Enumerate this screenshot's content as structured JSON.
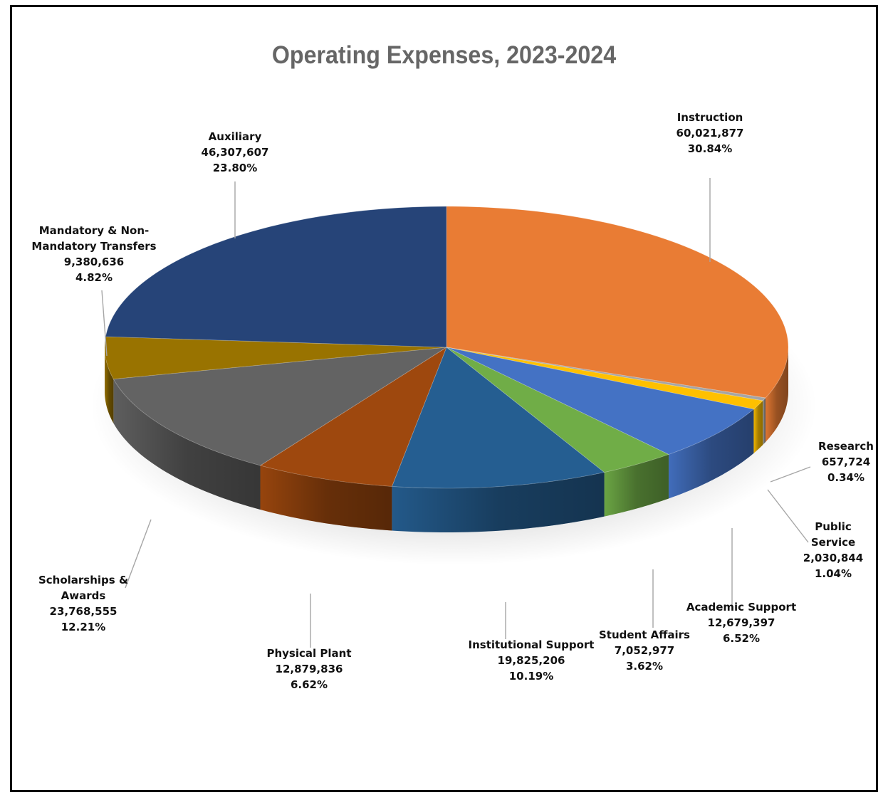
{
  "chart_data": {
    "type": "pie",
    "title": "Operating Expenses, 2023-2024",
    "slices": [
      {
        "name": "Instruction",
        "value": 60021877,
        "value_label": "60,021,877",
        "percent": "30.84%",
        "color": "#e97c34"
      },
      {
        "name": "Research",
        "value": 657724,
        "value_label": "657,724",
        "percent": "0.34%",
        "color": "#a5a5a5"
      },
      {
        "name": "Public Service",
        "value": 2030844,
        "value_label": "2,030,844",
        "percent": "1.04%",
        "color": "#ffc000"
      },
      {
        "name": "Academic Support",
        "value": 12679397,
        "value_label": "12,679,397",
        "percent": "6.52%",
        "color": "#4472c4"
      },
      {
        "name": "Student Affairs",
        "value": 7052977,
        "value_label": "7,052,977",
        "percent": "3.62%",
        "color": "#70ad47"
      },
      {
        "name": "Institutional Support",
        "value": 19825206,
        "value_label": "19,825,206",
        "percent": "10.19%",
        "color": "#255e91"
      },
      {
        "name": "Physical Plant",
        "value": 12879836,
        "value_label": "12,879,836",
        "percent": "6.62%",
        "color": "#9e480e"
      },
      {
        "name": "Scholarships & Awards",
        "value": 23768555,
        "value_label": "23,768,555",
        "percent": "12.21%",
        "color": "#636363"
      },
      {
        "name": "Mandatory & Non-Mandatory Transfers",
        "value": 9380636,
        "value_label": "9,380,636",
        "percent": "4.82%",
        "color": "#997300"
      },
      {
        "name": "Auxiliary",
        "value": 46307607,
        "value_label": "46,307,607",
        "percent": "23.80%",
        "color": "#264478"
      }
    ]
  },
  "labels": {
    "instruction": [
      "Instruction"
    ],
    "research": [
      "Research"
    ],
    "public_service": [
      "Public",
      "Service"
    ],
    "academic_support": [
      "Academic Support"
    ],
    "student_affairs": [
      "Student Affairs"
    ],
    "institutional_support": [
      "Institutional Support"
    ],
    "physical_plant": [
      "Physical Plant"
    ],
    "scholarships": [
      "Scholarships &",
      "Awards"
    ],
    "transfers": [
      "Mandatory & Non-",
      "Mandatory Transfers"
    ],
    "auxiliary": [
      "Auxiliary"
    ]
  }
}
